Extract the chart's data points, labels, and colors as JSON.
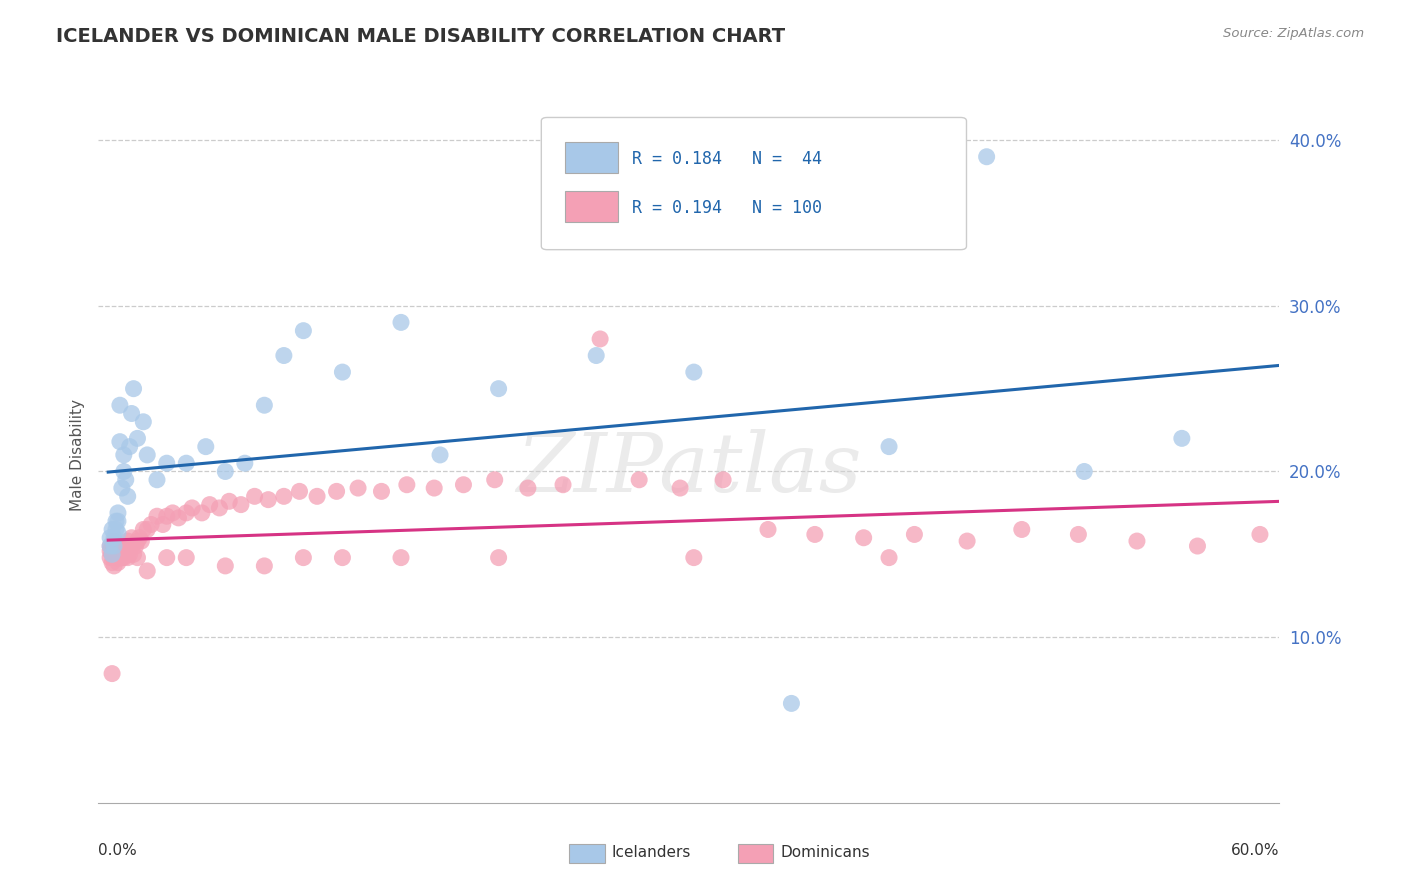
{
  "title": "ICELANDER VS DOMINICAN MALE DISABILITY CORRELATION CHART",
  "source": "Source: ZipAtlas.com",
  "ylabel": "Male Disability",
  "watermark": "ZIPatlas",
  "icelanders": {
    "R": 0.184,
    "N": 44,
    "color": "#a8c8e8",
    "line_color": "#2166ac",
    "x": [
      0.001,
      0.001,
      0.002,
      0.002,
      0.003,
      0.003,
      0.004,
      0.004,
      0.005,
      0.005,
      0.005,
      0.006,
      0.006,
      0.007,
      0.008,
      0.008,
      0.009,
      0.01,
      0.011,
      0.012,
      0.013,
      0.015,
      0.018,
      0.02,
      0.025,
      0.03,
      0.04,
      0.05,
      0.06,
      0.07,
      0.08,
      0.09,
      0.1,
      0.12,
      0.15,
      0.17,
      0.2,
      0.25,
      0.3,
      0.35,
      0.4,
      0.45,
      0.5,
      0.55
    ],
    "y": [
      0.155,
      0.16,
      0.15,
      0.165,
      0.155,
      0.16,
      0.165,
      0.17,
      0.163,
      0.17,
      0.175,
      0.218,
      0.24,
      0.19,
      0.2,
      0.21,
      0.195,
      0.185,
      0.215,
      0.235,
      0.25,
      0.22,
      0.23,
      0.21,
      0.195,
      0.205,
      0.205,
      0.215,
      0.2,
      0.205,
      0.24,
      0.27,
      0.285,
      0.26,
      0.29,
      0.21,
      0.25,
      0.27,
      0.26,
      0.06,
      0.215,
      0.39,
      0.2,
      0.22
    ]
  },
  "dominicans": {
    "R": 0.194,
    "N": 100,
    "color": "#f4a0b5",
    "line_color": "#d63384",
    "x": [
      0.001,
      0.001,
      0.001,
      0.002,
      0.002,
      0.002,
      0.003,
      0.003,
      0.003,
      0.003,
      0.004,
      0.004,
      0.004,
      0.004,
      0.005,
      0.005,
      0.005,
      0.005,
      0.006,
      0.006,
      0.006,
      0.007,
      0.007,
      0.007,
      0.008,
      0.008,
      0.008,
      0.009,
      0.009,
      0.01,
      0.01,
      0.01,
      0.011,
      0.012,
      0.012,
      0.013,
      0.014,
      0.015,
      0.016,
      0.017,
      0.018,
      0.02,
      0.022,
      0.025,
      0.028,
      0.03,
      0.033,
      0.036,
      0.04,
      0.043,
      0.048,
      0.052,
      0.057,
      0.062,
      0.068,
      0.075,
      0.082,
      0.09,
      0.098,
      0.107,
      0.117,
      0.128,
      0.14,
      0.153,
      0.167,
      0.182,
      0.198,
      0.215,
      0.233,
      0.252,
      0.272,
      0.293,
      0.315,
      0.338,
      0.362,
      0.387,
      0.413,
      0.44,
      0.468,
      0.497,
      0.527,
      0.558,
      0.59,
      0.002,
      0.003,
      0.005,
      0.007,
      0.01,
      0.015,
      0.02,
      0.03,
      0.04,
      0.06,
      0.08,
      0.1,
      0.12,
      0.15,
      0.2,
      0.3,
      0.4
    ],
    "y": [
      0.148,
      0.152,
      0.155,
      0.145,
      0.15,
      0.155,
      0.148,
      0.152,
      0.143,
      0.158,
      0.15,
      0.148,
      0.153,
      0.157,
      0.145,
      0.15,
      0.155,
      0.148,
      0.152,
      0.148,
      0.155,
      0.15,
      0.155,
      0.148,
      0.152,
      0.148,
      0.155,
      0.15,
      0.155,
      0.148,
      0.153,
      0.158,
      0.15,
      0.155,
      0.16,
      0.15,
      0.155,
      0.158,
      0.16,
      0.158,
      0.165,
      0.165,
      0.168,
      0.173,
      0.168,
      0.173,
      0.175,
      0.172,
      0.175,
      0.178,
      0.175,
      0.18,
      0.178,
      0.182,
      0.18,
      0.185,
      0.183,
      0.185,
      0.188,
      0.185,
      0.188,
      0.19,
      0.188,
      0.192,
      0.19,
      0.192,
      0.195,
      0.19,
      0.192,
      0.28,
      0.195,
      0.19,
      0.195,
      0.165,
      0.162,
      0.16,
      0.162,
      0.158,
      0.165,
      0.162,
      0.158,
      0.155,
      0.162,
      0.078,
      0.155,
      0.155,
      0.148,
      0.152,
      0.148,
      0.14,
      0.148,
      0.148,
      0.143,
      0.143,
      0.148,
      0.148,
      0.148,
      0.148,
      0.148,
      0.148
    ]
  },
  "xlim": [
    -0.005,
    0.6
  ],
  "ylim": [
    0.0,
    0.42
  ],
  "ytick_positions": [
    0.1,
    0.2,
    0.3,
    0.4
  ],
  "ytick_labels": [
    "10.0%",
    "20.0%",
    "30.0%",
    "40.0%"
  ],
  "grid_color": "#cccccc",
  "background_color": "#ffffff",
  "legend_label_1": "Icelanders",
  "legend_label_2": "Dominicans",
  "title_color": "#333333",
  "axis_label_color": "#555555",
  "tick_color": "#4472c4"
}
